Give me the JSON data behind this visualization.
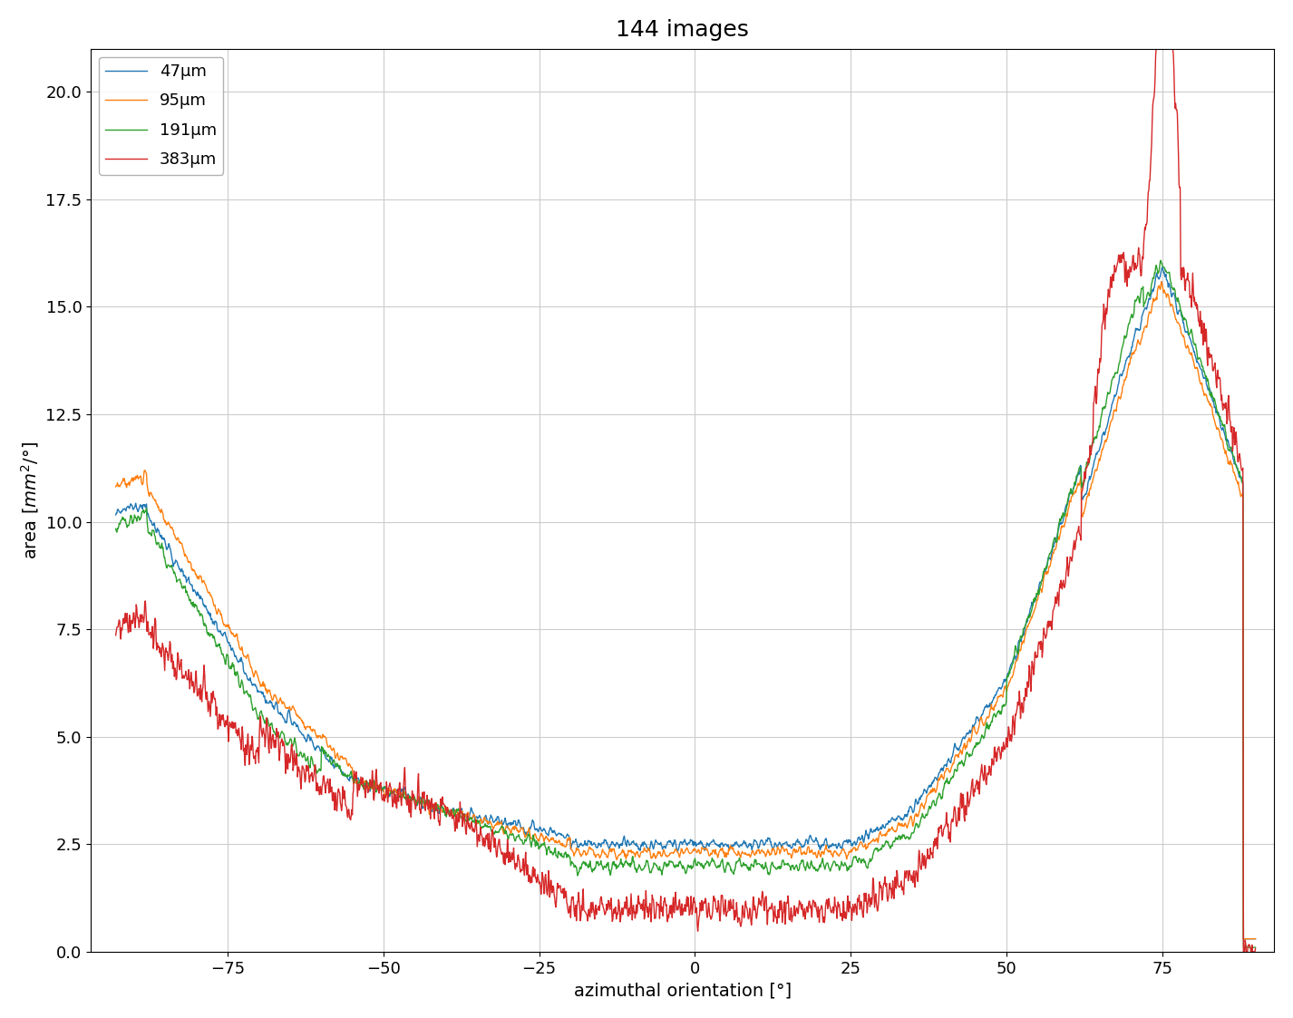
{
  "title": "144 images",
  "xlabel": "azimuthal orientation [°]",
  "ylabel": "area [$mm^2$/°]",
  "xlim": [
    -97,
    93
  ],
  "ylim": [
    0,
    21
  ],
  "xticks": [
    -75,
    -50,
    -25,
    0,
    25,
    50,
    75
  ],
  "yticks": [
    0.0,
    2.5,
    5.0,
    7.5,
    10.0,
    12.5,
    15.0,
    17.5,
    20.0
  ],
  "series_labels": [
    "47μm",
    "95μm",
    "191μm",
    "383μm"
  ],
  "series_colors": [
    "#1f77b4",
    "#ff7f0e",
    "#2ca02c",
    "#d62728"
  ],
  "line_width": 1.0,
  "title_fontsize": 18,
  "label_fontsize": 14,
  "tick_fontsize": 13,
  "legend_fontsize": 13,
  "grid": true,
  "background_color": "#ffffff"
}
